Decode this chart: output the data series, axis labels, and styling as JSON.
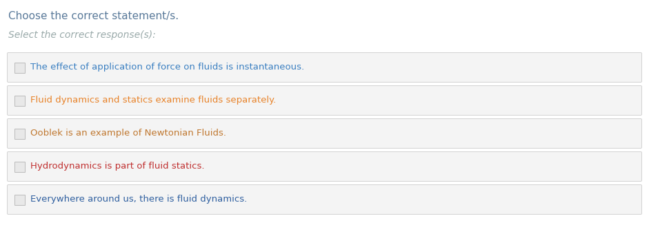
{
  "title": "Choose the correct statement/s.",
  "title_color": "#5a7a9a",
  "subtitle": "Select the correct response(s):",
  "subtitle_color": "#9aaaaa",
  "options": [
    "The effect of application of force on fluids is instantaneous.",
    "Fluid dynamics and statics examine fluids separately.",
    "Ooblek is an example of Newtonian Fluids.",
    "Hydrodynamics is part of fluid statics.",
    "Everywhere around us, there is fluid dynamics."
  ],
  "option_colors": [
    "#3a7fc1",
    "#e8832a",
    "#c07830",
    "#c03030",
    "#3060a0"
  ],
  "box_bg_color": "#f4f4f4",
  "box_edge_color": "#cccccc",
  "checkbox_bg": "#e8e8e8",
  "checkbox_edge": "#bbbbbb",
  "bg_color": "#ffffff",
  "title_fontsize": 11,
  "subtitle_fontsize": 10,
  "option_fontsize": 9.5
}
